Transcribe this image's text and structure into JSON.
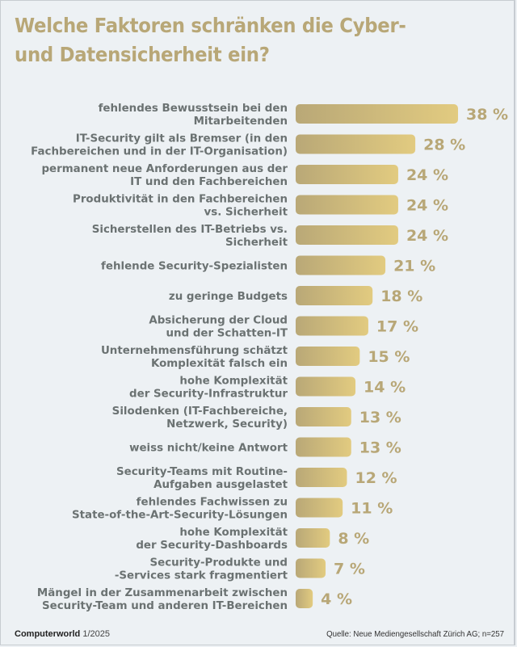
{
  "chart_data": {
    "type": "bar",
    "orientation": "horizontal",
    "title": "Welche Faktoren schränken die Cyber- und Datensicherheit ein?",
    "title_lines": [
      "Welche Faktoren schränken die Cyber-",
      "und Datensicherheit ein?"
    ],
    "xlabel": "",
    "ylabel": "",
    "unit": "%",
    "xlim": [
      0,
      38
    ],
    "grid": false,
    "legend": "none",
    "categories": [
      [
        "fehlendes Bewusstsein bei den",
        "Mitarbeitenden"
      ],
      [
        "IT-Security gilt als Bremser (in den",
        "Fachbereichen und in der IT-Organisation)"
      ],
      [
        "permanent neue Anforderungen aus der",
        "IT und den Fachbereichen"
      ],
      [
        "Produktivität in den Fachbereichen",
        "vs. Sicherheit"
      ],
      [
        "Sicherstellen des IT-Betriebs vs.",
        "Sicherheit"
      ],
      [
        "fehlende Security-Spezialisten"
      ],
      [
        "zu geringe Budgets"
      ],
      [
        "Absicherung der Cloud",
        "und der Schatten-IT"
      ],
      [
        "Unternehmensführung schätzt",
        "Komplexität falsch ein"
      ],
      [
        "hohe Komplexität",
        "der Security-Infrastruktur"
      ],
      [
        "Silodenken (IT-Fachbereiche,",
        "Netzwerk, Security)"
      ],
      [
        "weiss nicht/keine Antwort"
      ],
      [
        "Security-Teams mit Routine-",
        "Aufgaben ausgelastet"
      ],
      [
        "fehlendes Fachwissen zu",
        "State-of-the-Art-Security-Lösungen"
      ],
      [
        "hohe Komplexität",
        "der Security-Dashboards"
      ],
      [
        "Security-Produkte und",
        "-Services stark fragmentiert"
      ],
      [
        "Mängel in der Zusammenarbeit zwischen",
        "Security-Team und anderen IT-Bereichen"
      ]
    ],
    "values": [
      38,
      28,
      24,
      24,
      24,
      21,
      18,
      17,
      15,
      14,
      13,
      13,
      12,
      11,
      8,
      7,
      4
    ],
    "value_labels": [
      "38 %",
      "28 %",
      "24 %",
      "24 %",
      "24 %",
      "21 %",
      "18 %",
      "17 %",
      "15 %",
      "14 %",
      "13 %",
      "13 %",
      "12 %",
      "11 %",
      "8 %",
      "7 %",
      "4 %"
    ],
    "colors": {
      "bar_gradient_start": "#b9a877",
      "bar_gradient_end": "#e2cb80",
      "value_label": "#b8a777",
      "category_label": "#6b7272",
      "title": "#b8a777",
      "background": "#edf1f4"
    }
  },
  "footer": {
    "brand": "Computerworld",
    "issue": "1/2025",
    "source": "Quelle: Neue Mediengesellschaft Zürich AG; n=257"
  }
}
